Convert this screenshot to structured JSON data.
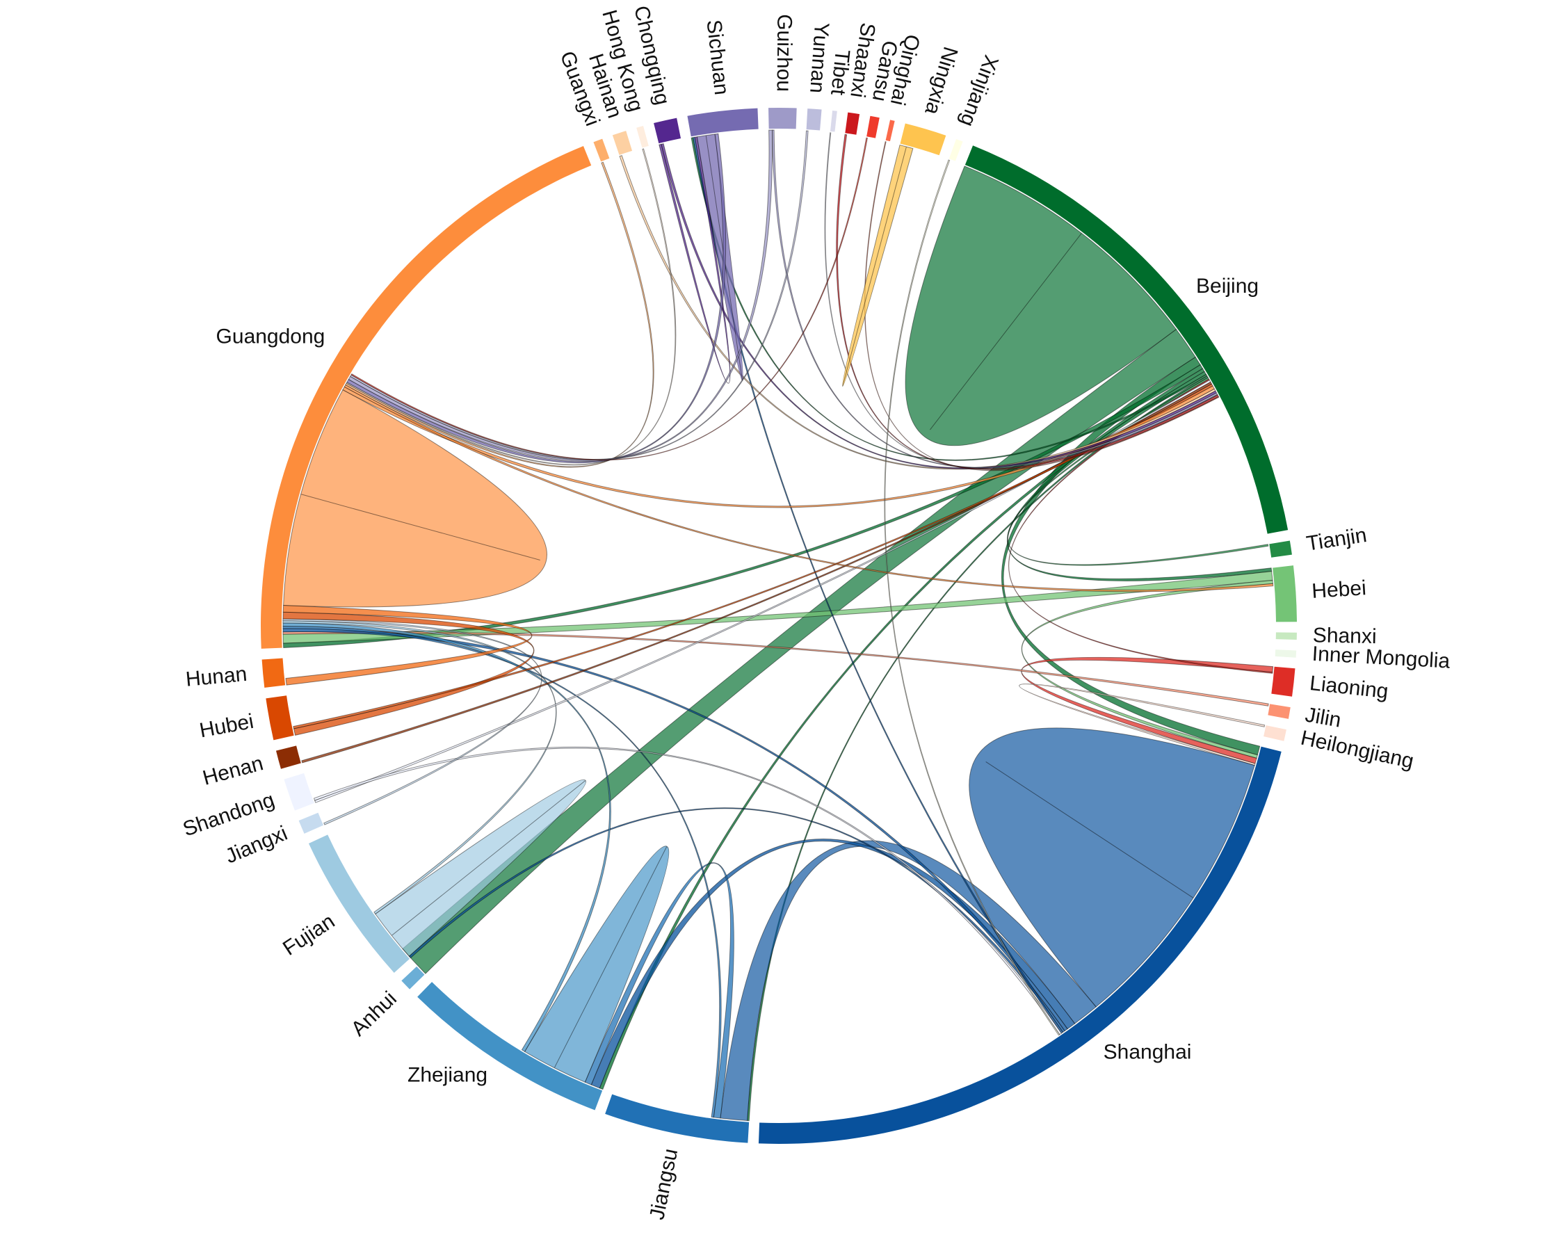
{
  "chart_data": {
    "type": "chord",
    "title": "",
    "groups": [
      {
        "name": "Beijing",
        "color": "#006d2c",
        "total": 1100
      },
      {
        "name": "Tianjin",
        "color": "#238b45",
        "total": 30
      },
      {
        "name": "Hebei",
        "color": "#74c476",
        "total": 120
      },
      {
        "name": "Shanxi",
        "color": "#c7e9c0",
        "total": 15
      },
      {
        "name": "Inner Mongolia",
        "color": "#edf8e9",
        "total": 15
      },
      {
        "name": "Liaoning",
        "color": "#de2d26",
        "total": 60
      },
      {
        "name": "Jilin",
        "color": "#fc9272",
        "total": 25
      },
      {
        "name": "Heilongjiang",
        "color": "#fee0d2",
        "total": 25
      },
      {
        "name": "Shanghai",
        "color": "#08519c",
        "total": 1500
      },
      {
        "name": "Jiangsu",
        "color": "#2171b5",
        "total": 310
      },
      {
        "name": "Zhejiang",
        "color": "#4292c6",
        "total": 450
      },
      {
        "name": "Anhui",
        "color": "#6baed6",
        "total": 25
      },
      {
        "name": "Fujian",
        "color": "#9ecae1",
        "total": 330
      },
      {
        "name": "Jiangxi",
        "color": "#c6dbef",
        "total": 30
      },
      {
        "name": "Shandong",
        "color": "#eff3ff",
        "total": 70
      },
      {
        "name": "Henan",
        "color": "#8c2d04",
        "total": 40
      },
      {
        "name": "Hubei",
        "color": "#d94801",
        "total": 90
      },
      {
        "name": "Hunan",
        "color": "#f16913",
        "total": 60
      },
      {
        "name": "Guangdong",
        "color": "#fd8d3c",
        "total": 1350
      },
      {
        "name": "Guangxi",
        "color": "#fdae6b",
        "total": 20
      },
      {
        "name": "Hainan",
        "color": "#fdd0a2",
        "total": 30
      },
      {
        "name": "Hong Kong",
        "color": "#feedde",
        "total": 15
      },
      {
        "name": "Chongqing",
        "color": "#54278f",
        "total": 50
      },
      {
        "name": "Sichuan",
        "color": "#756bb1",
        "total": 150
      },
      {
        "name": "Guizhou",
        "color": "#9e9ac8",
        "total": 60
      },
      {
        "name": "Yunnan",
        "color": "#bcbddc",
        "total": 30
      },
      {
        "name": "Tibet",
        "color": "#dadaeb",
        "total": 10
      },
      {
        "name": "Shaanxi",
        "color": "#cb181d",
        "total": 25
      },
      {
        "name": "Gansu",
        "color": "#ef3b2c",
        "total": 20
      },
      {
        "name": "Qinghai",
        "color": "#fb6a4a",
        "total": 10
      },
      {
        "name": "Ningxia",
        "color": "#fec44f",
        "total": 90
      },
      {
        "name": "Xinjiang",
        "color": "#ffffe5",
        "total": 15
      }
    ],
    "flows": [
      {
        "source": "Beijing",
        "target": "Beijing",
        "value": 600
      },
      {
        "source": "Beijing",
        "target": "Anhui",
        "value": 150
      },
      {
        "source": "Beijing",
        "target": "Shanghai",
        "value": 40
      },
      {
        "source": "Beijing",
        "target": "Guangdong",
        "value": 20
      },
      {
        "source": "Beijing",
        "target": "Zhejiang",
        "value": 15
      },
      {
        "source": "Beijing",
        "target": "Hebei",
        "value": 15
      },
      {
        "source": "Beijing",
        "target": "Sichuan",
        "value": 8
      },
      {
        "source": "Beijing",
        "target": "Jiangsu",
        "value": 8
      },
      {
        "source": "Hebei",
        "target": "Guangdong",
        "value": 40
      },
      {
        "source": "Hebei",
        "target": "Shanghai",
        "value": 15
      },
      {
        "source": "Tianjin",
        "target": "Beijing",
        "value": 8
      },
      {
        "source": "Liaoning",
        "target": "Shanghai",
        "value": 25
      },
      {
        "source": "Liaoning",
        "target": "Beijing",
        "value": 5
      },
      {
        "source": "Jilin",
        "target": "Guangdong",
        "value": 10
      },
      {
        "source": "Heilongjiang",
        "target": "Shanghai",
        "value": 8
      },
      {
        "source": "Shanghai",
        "target": "Shanghai",
        "value": 650
      },
      {
        "source": "Shanghai",
        "target": "Jiangsu",
        "value": 120
      },
      {
        "source": "Shanghai",
        "target": "Zhejiang",
        "value": 40
      },
      {
        "source": "Shanghai",
        "target": "Guangdong",
        "value": 15
      },
      {
        "source": "Shanghai",
        "target": "Fujian",
        "value": 10
      },
      {
        "source": "Shanghai",
        "target": "Sichuan",
        "value": 8
      },
      {
        "source": "Jiangsu",
        "target": "Zhejiang",
        "value": 30
      },
      {
        "source": "Jiangsu",
        "target": "Guangdong",
        "value": 10
      },
      {
        "source": "Zhejiang",
        "target": "Zhejiang",
        "value": 150
      },
      {
        "source": "Zhejiang",
        "target": "Guangdong",
        "value": 15
      },
      {
        "source": "Fujian",
        "target": "Fujian",
        "value": 120
      },
      {
        "source": "Fujian",
        "target": "Guangdong",
        "value": 10
      },
      {
        "source": "Shandong",
        "target": "Beijing",
        "value": 10
      },
      {
        "source": "Shandong",
        "target": "Shanghai",
        "value": 10
      },
      {
        "source": "Jiangxi",
        "target": "Guangdong",
        "value": 8
      },
      {
        "source": "Henan",
        "target": "Beijing",
        "value": 10
      },
      {
        "source": "Hubei",
        "target": "Guangdong",
        "value": 30
      },
      {
        "source": "Hubei",
        "target": "Beijing",
        "value": 10
      },
      {
        "source": "Hunan",
        "target": "Guangdong",
        "value": 30
      },
      {
        "source": "Guangdong",
        "target": "Guangdong",
        "value": 500
      },
      {
        "source": "Guangdong",
        "target": "Beijing",
        "value": 15
      },
      {
        "source": "Guangdong",
        "target": "Hebei",
        "value": 10
      },
      {
        "source": "Guangxi",
        "target": "Guangdong",
        "value": 8
      },
      {
        "source": "Hainan",
        "target": "Beijing",
        "value": 10
      },
      {
        "source": "Hong Kong",
        "target": "Guangdong",
        "value": 5
      },
      {
        "source": "Chongqing",
        "target": "Sichuan",
        "value": 10
      },
      {
        "source": "Chongqing",
        "target": "Beijing",
        "value": 10
      },
      {
        "source": "Sichuan",
        "target": "Sichuan",
        "value": 40
      },
      {
        "source": "Sichuan",
        "target": "Guangdong",
        "value": 15
      },
      {
        "source": "Guizhou",
        "target": "Guangdong",
        "value": 15
      },
      {
        "source": "Guizhou",
        "target": "Beijing",
        "value": 8
      },
      {
        "source": "Yunnan",
        "target": "Guangdong",
        "value": 8
      },
      {
        "source": "Tibet",
        "target": "Beijing",
        "value": 3
      },
      {
        "source": "Shaanxi",
        "target": "Beijing",
        "value": 8
      },
      {
        "source": "Gansu",
        "target": "Guangdong",
        "value": 5
      },
      {
        "source": "Qinghai",
        "target": "Beijing",
        "value": 3
      },
      {
        "source": "Ningxia",
        "target": "Ningxia",
        "value": 30
      },
      {
        "source": "Xinjiang",
        "target": "Shanghai",
        "value": 5
      }
    ],
    "legend": "none",
    "grid": false
  }
}
